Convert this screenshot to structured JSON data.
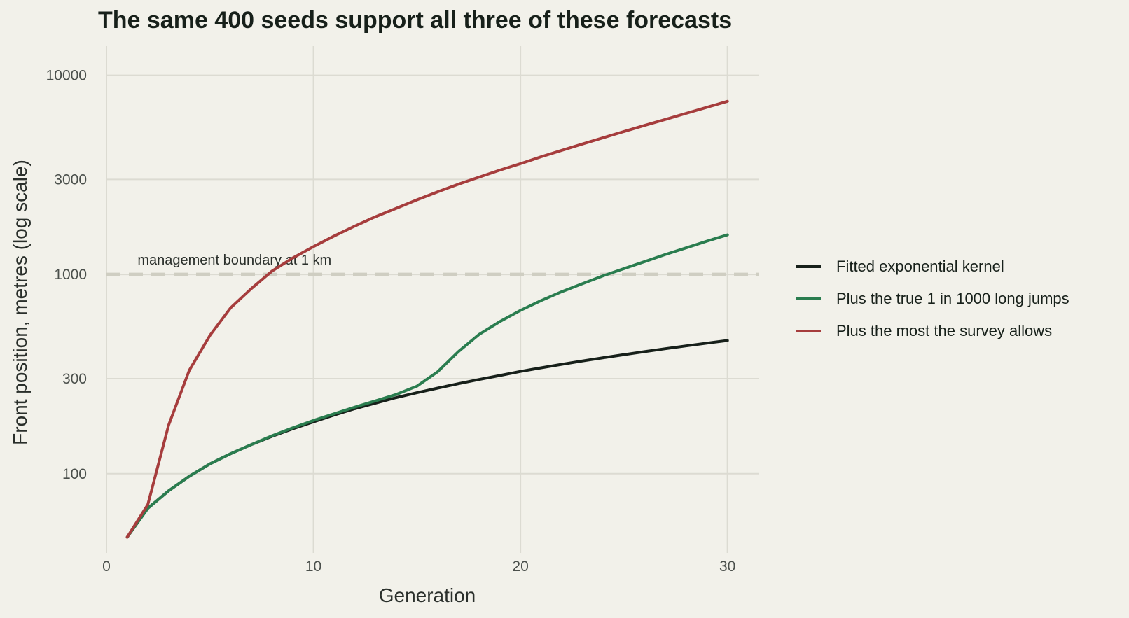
{
  "chart_data": {
    "type": "line",
    "title": "The same 400 seeds support all three of these forecasts",
    "xlabel": "Generation",
    "ylabel": "Front position, metres (log scale)",
    "xlim": [
      0,
      31.5
    ],
    "ylim": [
      40,
      14000
    ],
    "y_scale": "log",
    "x_ticks": [
      0,
      10,
      20,
      30
    ],
    "y_ticks": [
      100,
      300,
      1000,
      3000,
      10000
    ],
    "grid": true,
    "legend_position": "right",
    "reference_line": {
      "y": 1000,
      "style": "dashed",
      "label": "management boundary at 1 km"
    },
    "x": [
      1,
      2,
      3,
      4,
      5,
      6,
      7,
      8,
      9,
      10,
      11,
      12,
      13,
      14,
      15,
      16,
      17,
      18,
      19,
      20,
      21,
      22,
      23,
      24,
      25,
      26,
      27,
      28,
      29,
      30
    ],
    "series": [
      {
        "name": "Fitted exponential kernel",
        "color": "#17201a",
        "values": [
          48,
          67,
          82,
          97,
          112,
          126,
          140,
          154,
          168,
          182,
          197,
          212,
          226,
          241,
          255,
          269,
          283,
          297,
          311,
          326,
          340,
          354,
          368,
          382,
          396,
          410,
          424,
          438,
          452,
          466
        ]
      },
      {
        "name": "Plus the true 1 in 1000 long jumps",
        "color": "#2a7d4f",
        "values": [
          48,
          67,
          82,
          97,
          112,
          126,
          140,
          155,
          170,
          185,
          200,
          216,
          232,
          250,
          275,
          325,
          410,
          500,
          580,
          660,
          740,
          820,
          900,
          985,
          1070,
          1160,
          1260,
          1360,
          1470,
          1580
        ]
      },
      {
        "name": "Plus the most the survey allows",
        "color": "#a63d3d",
        "values": [
          48,
          70,
          175,
          330,
          495,
          680,
          850,
          1040,
          1210,
          1380,
          1560,
          1750,
          1950,
          2150,
          2370,
          2600,
          2840,
          3080,
          3340,
          3600,
          3900,
          4200,
          4520,
          4860,
          5220,
          5600,
          6000,
          6440,
          6900,
          7400
        ]
      }
    ]
  }
}
